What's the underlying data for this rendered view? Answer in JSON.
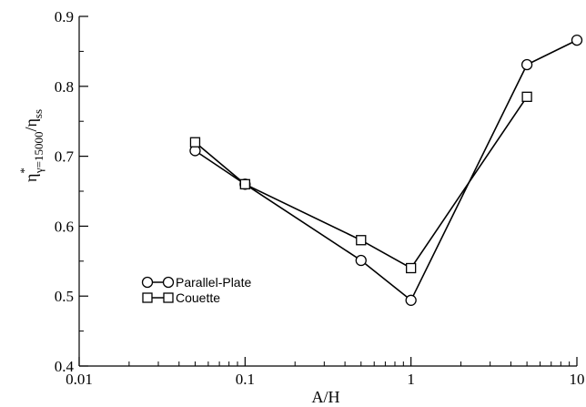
{
  "chart_data": {
    "type": "line",
    "x_scale": "log",
    "xlabel": "A/H",
    "ylabel": {
      "base": "η",
      "superscript": "*",
      "subscript": "γ=15000",
      "slash": "/η",
      "subscript2": "ss"
    },
    "xlim": [
      0.01,
      10
    ],
    "ylim": [
      0.4,
      0.9
    ],
    "x_ticks": [
      0.01,
      0.1,
      1,
      10
    ],
    "x_tick_labels": [
      "0.01",
      "0.1",
      "1",
      "10"
    ],
    "y_ticks": [
      0.4,
      0.5,
      0.6,
      0.7,
      0.8,
      0.9
    ],
    "y_tick_labels": [
      "0.4",
      "0.5",
      "0.6",
      "0.7",
      "0.8",
      "0.9"
    ],
    "grid": false,
    "legend_position": "lower-left",
    "series": [
      {
        "name": "Parallel-Plate",
        "marker": "circle",
        "x": [
          0.05,
          0.1,
          0.5,
          1,
          5,
          10
        ],
        "y": [
          0.708,
          0.66,
          0.551,
          0.494,
          0.831,
          0.866
        ]
      },
      {
        "name": "Couette",
        "marker": "square",
        "x": [
          0.05,
          0.1,
          0.5,
          1,
          5
        ],
        "y": [
          0.72,
          0.66,
          0.58,
          0.54,
          0.785
        ]
      }
    ]
  }
}
